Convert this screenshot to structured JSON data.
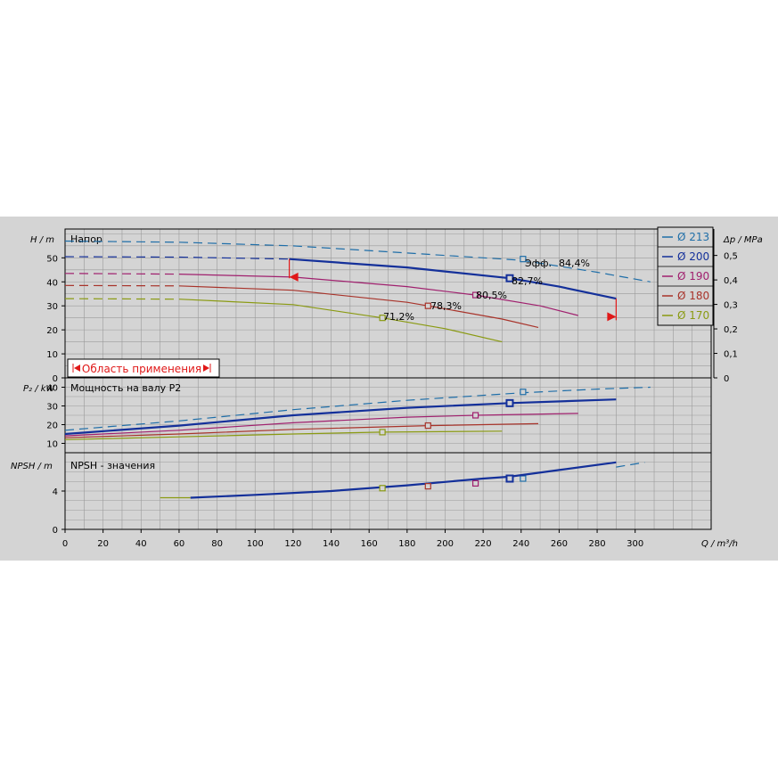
{
  "colors": {
    "d213": "#1f6ea8",
    "d200": "#14309a",
    "d190": "#a0206e",
    "d180": "#a8332a",
    "d170": "#8a9a12",
    "range": "#e01818"
  },
  "panels": {
    "head": {
      "title": "Напор",
      "ylabel": "H / m",
      "y2label": "Δp / MPa",
      "ticks": [
        "0",
        "10",
        "20",
        "30",
        "40",
        "50"
      ],
      "ticks2": [
        "0",
        "0,1",
        "0,2",
        "0,3",
        "0,4",
        "0,5"
      ]
    },
    "power": {
      "title": "Мощность на валу P2",
      "ylabel": "P₂ / kW",
      "ticks": [
        "10",
        "20",
        "30",
        "40"
      ]
    },
    "npsh": {
      "title": "NPSH - значения",
      "ylabel": "NPSH / m",
      "ticks": [
        "0",
        "4"
      ]
    }
  },
  "xaxis": {
    "label": "Q / m³/h",
    "ticks": [
      "0",
      "20",
      "40",
      "60",
      "80",
      "100",
      "120",
      "140",
      "160",
      "180",
      "200",
      "220",
      "240",
      "260",
      "280",
      "300"
    ]
  },
  "legend": [
    "Ø 213",
    "Ø 200",
    "Ø 190",
    "Ø 180",
    "Ø 170"
  ],
  "annotations": {
    "range_label": "Область применения",
    "eff_label": "Эфф.",
    "eff213": "84,4%",
    "eff200": "82,7%",
    "eff190": "80,5%",
    "eff180": "78,3%",
    "eff170": "71,2%"
  },
  "chart_data": {
    "type": "line",
    "xlabel": "Q / m³/h",
    "xlim": [
      0,
      340
    ],
    "series": [
      {
        "name": "Ø 213",
        "color": "#1f6ea8",
        "dashed_only": true,
        "head": [
          [
            0,
            57
          ],
          [
            60,
            56.5
          ],
          [
            120,
            55
          ],
          [
            180,
            52
          ],
          [
            240,
            49
          ],
          [
            280,
            44
          ],
          [
            308,
            40
          ]
        ],
        "power": [
          [
            0,
            17
          ],
          [
            60,
            22
          ],
          [
            120,
            28
          ],
          [
            180,
            33
          ],
          [
            240,
            37
          ],
          [
            280,
            39
          ],
          [
            308,
            40
          ]
        ],
        "npsh": [
          [
            290,
            6.5
          ],
          [
            305,
            7
          ]
        ],
        "bep": {
          "q": 241,
          "h": 49.5,
          "p": 37.5,
          "npsh": 5.3,
          "eff": "84,4%"
        }
      },
      {
        "name": "Ø 200",
        "color": "#14309a",
        "head": [
          [
            0,
            50.5
          ],
          [
            60,
            50.3
          ],
          [
            118,
            49.5
          ],
          [
            180,
            46
          ],
          [
            234,
            41.5
          ],
          [
            260,
            38
          ],
          [
            290,
            33
          ]
        ],
        "power": [
          [
            0,
            15
          ],
          [
            60,
            19.5
          ],
          [
            120,
            25
          ],
          [
            180,
            29
          ],
          [
            234,
            31.5
          ],
          [
            290,
            33.5
          ]
        ],
        "npsh": [
          [
            66,
            3.3
          ],
          [
            100,
            3.6
          ],
          [
            140,
            4
          ],
          [
            180,
            4.6
          ],
          [
            220,
            5.3
          ],
          [
            234,
            5.5
          ],
          [
            260,
            6.2
          ],
          [
            290,
            7
          ]
        ],
        "bep": {
          "q": 234,
          "h": 41.5,
          "p": 31.5,
          "npsh": 5.3,
          "eff": "82,7%"
        }
      },
      {
        "name": "Ø 190",
        "color": "#a0206e",
        "head": [
          [
            0,
            43.5
          ],
          [
            60,
            43.2
          ],
          [
            120,
            42
          ],
          [
            180,
            38
          ],
          [
            216,
            34.5
          ],
          [
            250,
            30
          ],
          [
            270,
            26
          ]
        ],
        "power": [
          [
            0,
            14
          ],
          [
            60,
            17
          ],
          [
            120,
            21
          ],
          [
            180,
            24
          ],
          [
            216,
            25
          ],
          [
            270,
            26
          ]
        ],
        "bep": {
          "q": 216,
          "h": 34.5,
          "p": 25,
          "npsh": 4.8,
          "eff": "80,5%"
        }
      },
      {
        "name": "Ø 180",
        "color": "#a8332a",
        "head": [
          [
            0,
            38.5
          ],
          [
            60,
            38.3
          ],
          [
            120,
            36.5
          ],
          [
            180,
            31.5
          ],
          [
            191,
            30
          ],
          [
            230,
            24.5
          ],
          [
            249,
            21
          ]
        ],
        "power": [
          [
            0,
            13
          ],
          [
            60,
            15
          ],
          [
            120,
            17.5
          ],
          [
            191,
            19.5
          ],
          [
            249,
            20.5
          ]
        ],
        "bep": {
          "q": 191,
          "h": 30,
          "p": 19.5,
          "npsh": 4.5,
          "eff": "78,3%"
        }
      },
      {
        "name": "Ø 170",
        "color": "#8a9a12",
        "head": [
          [
            0,
            33
          ],
          [
            60,
            32.8
          ],
          [
            120,
            30.5
          ],
          [
            167,
            25
          ],
          [
            200,
            20.5
          ],
          [
            230,
            15
          ]
        ],
        "power": [
          [
            0,
            12
          ],
          [
            60,
            13.5
          ],
          [
            120,
            15
          ],
          [
            167,
            16
          ],
          [
            230,
            16.5
          ]
        ],
        "npsh": [
          [
            50,
            3.3
          ],
          [
            66,
            3.3
          ]
        ],
        "bep": {
          "q": 167,
          "h": 25,
          "p": 16,
          "npsh": 4.3,
          "eff": "71,2%"
        }
      }
    ],
    "operating_range": {
      "qmin": 118,
      "qmax": 290
    }
  }
}
